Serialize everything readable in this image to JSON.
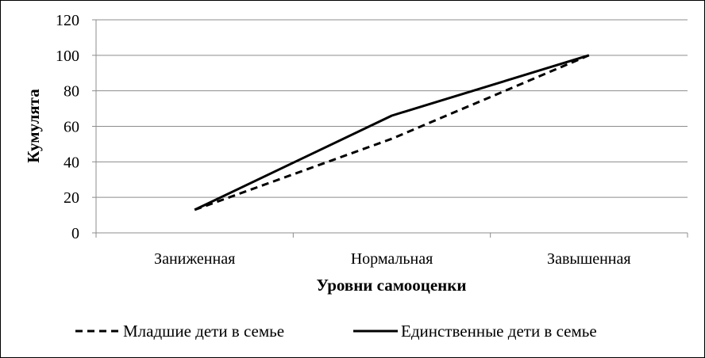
{
  "chart_data": {
    "type": "line",
    "title": "",
    "xlabel": "Уровни самооценки",
    "ylabel": "Кумулята",
    "categories": [
      "Заниженная",
      "Нормальная",
      "Завышенная"
    ],
    "ylim": [
      0,
      120
    ],
    "yticks": [
      "0",
      "20",
      "40",
      "60",
      "80",
      "100",
      "120"
    ],
    "grid": true,
    "legend_position": "bottom",
    "series": [
      {
        "name": "Младшие дети в семье",
        "values": [
          13,
          53,
          100
        ],
        "style": "dashed",
        "color": "#000000"
      },
      {
        "name": "Единственные дети в семье",
        "values": [
          13,
          66,
          100
        ],
        "style": "solid",
        "color": "#000000"
      }
    ]
  }
}
